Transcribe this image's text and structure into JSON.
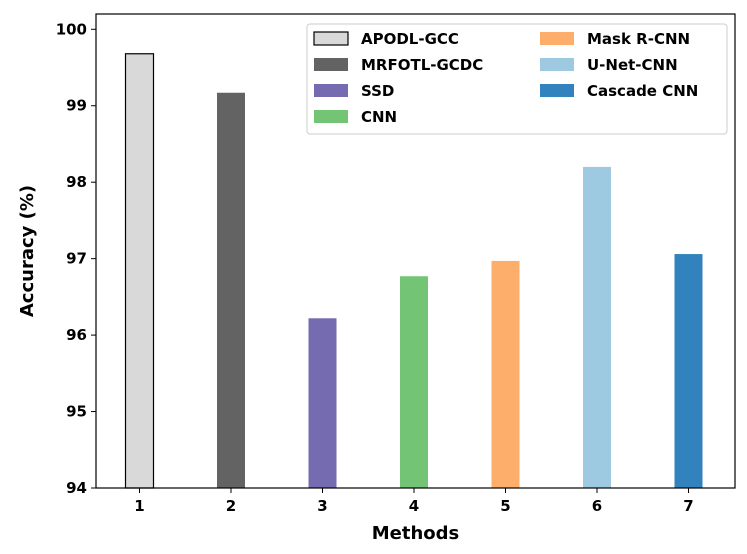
{
  "chart_data": {
    "type": "bar",
    "title": "",
    "xlabel": "Methods",
    "ylabel": "Accuracy (%)",
    "ylim": [
      94,
      100.2
    ],
    "yticks": [
      94,
      95,
      96,
      97,
      98,
      99,
      100
    ],
    "categories": [
      "1",
      "2",
      "3",
      "4",
      "5",
      "6",
      "7"
    ],
    "series": [
      {
        "name": "APODL-GCC",
        "category": "1",
        "value": 99.68,
        "color": "#d9d9d9",
        "edge": "#000000"
      },
      {
        "name": "MRFOTL-GCDC",
        "category": "2",
        "value": 99.17,
        "color": "#636363",
        "edge": null
      },
      {
        "name": "SSD",
        "category": "3",
        "value": 96.22,
        "color": "#756bb1",
        "edge": null
      },
      {
        "name": "CNN",
        "category": "4",
        "value": 96.77,
        "color": "#74c476",
        "edge": null
      },
      {
        "name": "Mask R-CNN",
        "category": "5",
        "value": 96.97,
        "color": "#fdae6b",
        "edge": null
      },
      {
        "name": "U-Net-CNN",
        "category": "6",
        "value": 98.2,
        "color": "#9ecae1",
        "edge": null
      },
      {
        "name": "Cascade CNN",
        "category": "7",
        "value": 97.06,
        "color": "#3182bd",
        "edge": null
      }
    ],
    "legend": {
      "position": "top-right",
      "columns": 2
    },
    "grid": false
  }
}
